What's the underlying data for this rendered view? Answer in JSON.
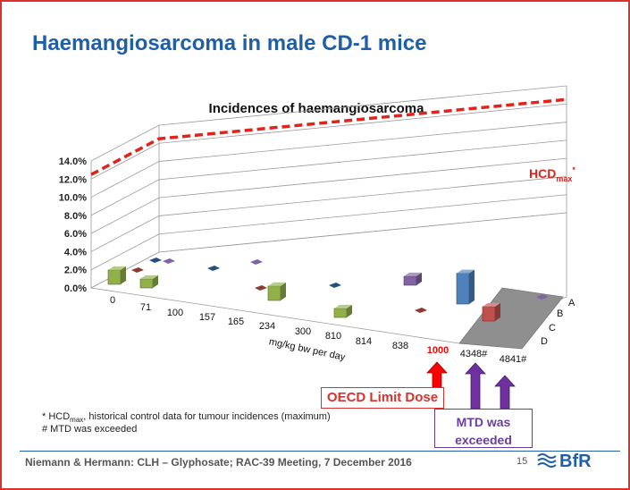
{
  "slide": {
    "title": "Haemangiosarcoma in male CD-1 mice",
    "footnote_hcd_prefix": "* HCD",
    "footnote_hcd_sub": "max",
    "footnote_hcd_text": ", historical control data for tumour incidences (maximum)",
    "footnote_mtd": "# MTD was exceeded",
    "oecd_label": "OECD Limit Dose",
    "mtd_label_line1": "MTD was",
    "mtd_label_line2": "exceeded",
    "footer": "Niemann & Hermann: CLH – Glyphosate; RAC-39 Meeting, 7 December 2016",
    "page_number": "15",
    "logo_text": "BfR"
  },
  "colors": {
    "title": "#1f5fa8",
    "border": "#d9312b",
    "hcd_line": "#e0231b",
    "oecd_arrow": "#ff0000",
    "mtd_arrow": "#7030a0",
    "series_A": "#92b04a",
    "series_B": "#8a3b33",
    "series_C": "#23507e",
    "series_D": "#8064a2",
    "series_E": "#4f81bd",
    "series_F": "#c0504d"
  },
  "chart_data": {
    "type": "bar",
    "subtype": "3d-column",
    "title": "Incidences of haemangiosarcoma",
    "xlabel": "mg/kg bw per day",
    "ylabel": "",
    "ylim": [
      0,
      14
    ],
    "y_ticks": [
      "0.0%",
      "2.0%",
      "4.0%",
      "6.0%",
      "8.0%",
      "10.0%",
      "12.0%",
      "14.0%"
    ],
    "categories": [
      "0",
      "71",
      "100",
      "157",
      "165",
      "234",
      "300",
      "810",
      "814",
      "838",
      "1000",
      "4348",
      "4841"
    ],
    "category_suffix": [
      "",
      "",
      "",
      "",
      "",
      "",
      "",
      "",
      "",
      "",
      "",
      "#",
      "#"
    ],
    "highlight_category": "1000",
    "depth_labels": [
      "A",
      "B",
      "C",
      "D"
    ],
    "bars": [
      {
        "category": "0",
        "value": 4.0,
        "color": "#92b04a"
      },
      {
        "category": "71",
        "value": 2.0,
        "color": "#92b04a"
      },
      {
        "category": "234",
        "value": 4.0,
        "color": "#92b04a"
      },
      {
        "category": "810",
        "value": 2.0,
        "color": "#92b04a"
      },
      {
        "category": "838",
        "value": 2.0,
        "color": "#8064a2"
      },
      {
        "category": "4348",
        "value": 10.0,
        "color": "#4f81bd"
      },
      {
        "category": "4348",
        "value": 4.0,
        "color": "#c0504d"
      }
    ],
    "reference_line": {
      "name": "HCD",
      "sub": "max",
      "mark": "*",
      "value": 12.5
    },
    "grid": true
  }
}
